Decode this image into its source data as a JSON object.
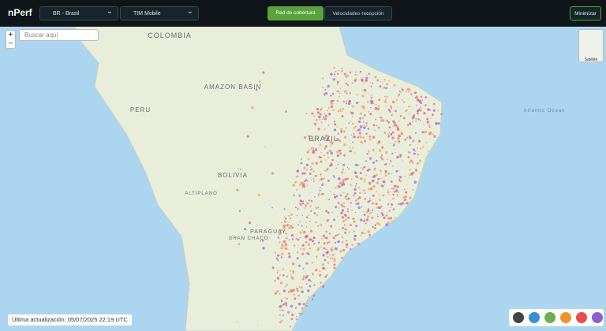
{
  "header": {
    "logo": "nPerf",
    "country": "BR - Brasil",
    "operator": "TIM Mobile",
    "tabs": [
      "Red de cobertura",
      "Velocidades recepción"
    ],
    "minimize": "Minimizar"
  },
  "map": {
    "search_placeholder": "Buscar aquí",
    "zoom_in": "+",
    "zoom_out": "−",
    "layer": "Satélite",
    "labels": [
      "COLOMBIA",
      "AMAZON BASIN",
      "PERU",
      "BRAZIL",
      "BOLIVIA",
      "ALTIPLANO",
      "GRAN CHACO",
      "PARAGUAY",
      "Atlantic Ocean"
    ]
  },
  "footer": {
    "updated": "Última actualización: 05/07/2025 22:19 UTC"
  }
}
